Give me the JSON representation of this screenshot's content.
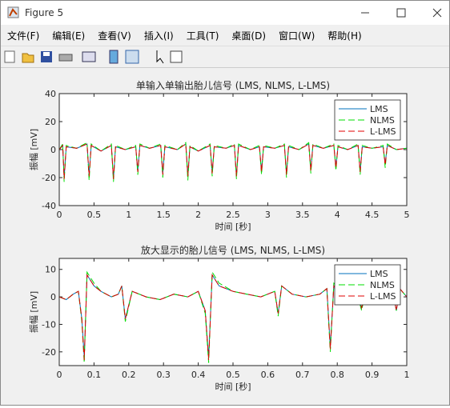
{
  "window_title": "Figure 5",
  "menu": [
    "文件(F)",
    "编辑(E)",
    "查看(V)",
    "插入(I)",
    "工具(T)",
    "桌面(D)",
    "窗口(W)",
    "帮助(H)"
  ],
  "chart_data": [
    {
      "type": "line",
      "title": "单输入单输出胎儿信号 (LMS, NLMS, L-LMS)",
      "xlabel": "时间 [秒]",
      "ylabel": "振幅 [mV]",
      "x": [
        0,
        0.05,
        0.07,
        0.1,
        0.25,
        0.4,
        0.43,
        0.46,
        0.6,
        0.75,
        0.78,
        0.81,
        0.95,
        1.1,
        1.13,
        1.16,
        1.3,
        1.46,
        1.49,
        1.52,
        1.7,
        1.82,
        1.85,
        1.88,
        2.0,
        2.17,
        2.2,
        2.23,
        2.4,
        2.52,
        2.55,
        2.58,
        2.75,
        2.88,
        2.91,
        2.94,
        3.1,
        3.24,
        3.27,
        3.3,
        3.45,
        3.59,
        3.62,
        3.65,
        3.8,
        3.95,
        3.98,
        4.01,
        4.15,
        4.3,
        4.33,
        4.36,
        4.5,
        4.66,
        4.69,
        4.72,
        4.85,
        5.0
      ],
      "series": [
        {
          "name": "LMS",
          "color": "#0072bd",
          "dash": "none",
          "values": [
            0,
            3,
            -20,
            2,
            1,
            4,
            -18,
            3,
            -1,
            3,
            -21,
            2,
            0,
            2,
            -15,
            3,
            1,
            3,
            -17,
            2,
            0,
            4,
            -18,
            2,
            -1,
            3,
            -16,
            2,
            1,
            3,
            -19,
            3,
            0,
            2,
            -15,
            2,
            1,
            3,
            -17,
            2,
            0,
            4,
            -14,
            3,
            1,
            3,
            -12,
            2,
            0,
            3,
            -15,
            2,
            1,
            2,
            -10,
            3,
            0,
            1
          ]
        },
        {
          "name": "NLMS",
          "color": "#00dd00",
          "dash": "8 4",
          "values": [
            0,
            4,
            -23,
            3,
            1,
            5,
            -22,
            4,
            -1,
            4,
            -23,
            3,
            0,
            3,
            -18,
            4,
            1,
            4,
            -20,
            3,
            0,
            5,
            -22,
            3,
            -1,
            4,
            -19,
            3,
            1,
            4,
            -21,
            4,
            0,
            3,
            -18,
            3,
            1,
            4,
            -20,
            3,
            0,
            5,
            -17,
            4,
            1,
            4,
            -15,
            3,
            0,
            4,
            -18,
            3,
            1,
            3,
            -13,
            4,
            0,
            1
          ]
        },
        {
          "name": "L-LMS",
          "color": "#e00000",
          "dash": "8 4",
          "values": [
            0,
            3,
            -21,
            2,
            1,
            4,
            -19,
            3,
            -1,
            3,
            -21,
            2,
            0,
            2,
            -16,
            3,
            1,
            3,
            -18,
            2,
            0,
            4,
            -19,
            2,
            -1,
            3,
            -17,
            2,
            1,
            3,
            -19,
            3,
            0,
            2,
            -16,
            2,
            1,
            3,
            -18,
            2,
            0,
            4,
            -15,
            3,
            1,
            3,
            -13,
            2,
            0,
            3,
            -16,
            2,
            1,
            2,
            -11,
            3,
            0,
            1
          ]
        }
      ],
      "xlim": [
        0,
        5
      ],
      "xticks": [
        0,
        0.5,
        1,
        1.5,
        2,
        2.5,
        3,
        3.5,
        4,
        4.5,
        5
      ],
      "ylim": [
        -40,
        40
      ],
      "yticks": [
        -40,
        -20,
        0,
        20,
        40
      ],
      "legend": "upper right"
    },
    {
      "type": "line",
      "title": "放大显示的胎儿信号 (LMS, NLMS, L-LMS)",
      "xlabel": "时间 [秒]",
      "ylabel": "振幅 [mV]",
      "x": [
        0,
        0.02,
        0.04,
        0.055,
        0.065,
        0.072,
        0.08,
        0.1,
        0.12,
        0.15,
        0.17,
        0.18,
        0.19,
        0.21,
        0.25,
        0.29,
        0.33,
        0.37,
        0.4,
        0.42,
        0.43,
        0.44,
        0.46,
        0.5,
        0.54,
        0.58,
        0.62,
        0.63,
        0.64,
        0.67,
        0.71,
        0.75,
        0.77,
        0.78,
        0.79,
        0.82,
        0.86,
        0.87,
        0.88,
        0.92,
        0.96,
        0.97,
        0.98,
        1
      ],
      "series": [
        {
          "name": "LMS",
          "color": "#0072bd",
          "dash": "none",
          "values": [
            0,
            -1,
            1,
            2,
            -8,
            -22,
            8,
            4,
            2,
            0,
            1,
            4,
            -8,
            2,
            0,
            -1,
            1,
            0,
            2,
            -5,
            -22,
            8,
            4,
            2,
            1,
            0,
            2,
            -6,
            4,
            1,
            0,
            1,
            3,
            -18,
            4,
            2,
            0,
            -4,
            1,
            0,
            2,
            -5,
            3,
            0
          ]
        },
        {
          "name": "NLMS",
          "color": "#00dd00",
          "dash": "8 4",
          "values": [
            0,
            -1,
            1,
            2,
            -9,
            -24,
            9,
            5,
            2,
            0,
            1,
            4,
            -9,
            2,
            0,
            -1,
            1,
            0,
            2,
            -6,
            -24,
            9,
            5,
            2,
            1,
            0,
            2,
            -7,
            4,
            1,
            0,
            1,
            3,
            -20,
            5,
            2,
            0,
            -5,
            1,
            0,
            2,
            -5,
            3,
            0
          ]
        },
        {
          "name": "L-LMS",
          "color": "#e00000",
          "dash": "8 4",
          "values": [
            0,
            -1,
            1,
            2,
            -8,
            -23,
            8,
            4,
            2,
            0,
            1,
            4,
            -8,
            2,
            0,
            -1,
            1,
            0,
            2,
            -5,
            -23,
            8,
            4,
            2,
            1,
            0,
            2,
            -6,
            4,
            1,
            0,
            1,
            3,
            -19,
            4,
            2,
            0,
            -4,
            1,
            0,
            2,
            -5,
            3,
            0
          ]
        }
      ],
      "xlim": [
        0,
        1
      ],
      "xticks": [
        0,
        0.1,
        0.2,
        0.3,
        0.4,
        0.5,
        0.6,
        0.7,
        0.8,
        0.9,
        1
      ],
      "ylim": [
        -25,
        14
      ],
      "yticks": [
        -20,
        -10,
        0,
        10
      ],
      "legend": "upper right"
    }
  ]
}
